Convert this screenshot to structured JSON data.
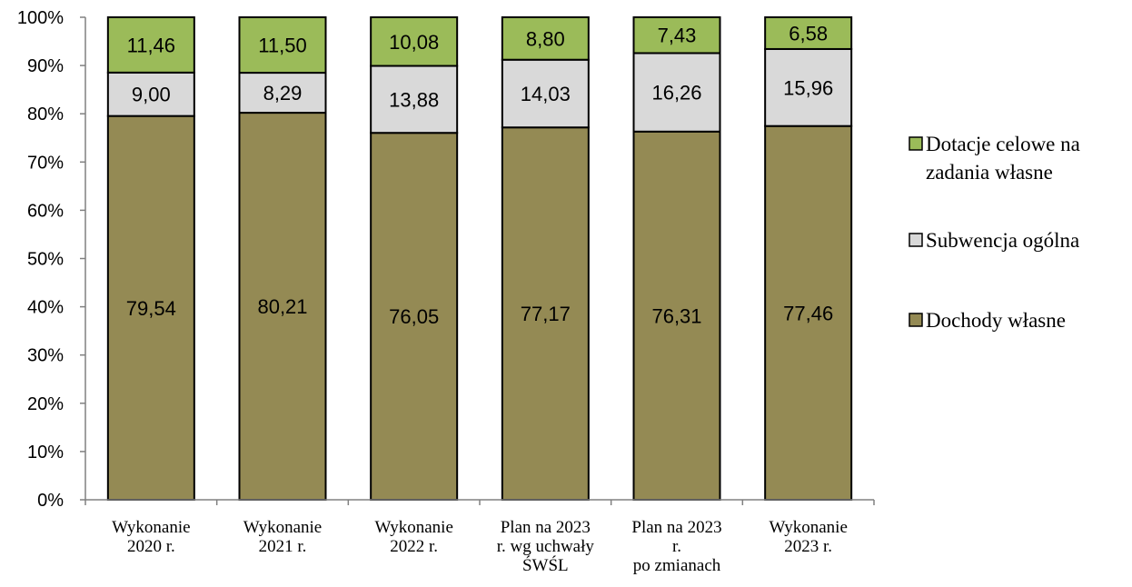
{
  "chart_data": {
    "type": "bar",
    "stacked": true,
    "normalized": true,
    "categories": [
      [
        "Wykonanie",
        "2020 r."
      ],
      [
        "Wykonanie",
        "2021 r."
      ],
      [
        "Wykonanie",
        "2022 r."
      ],
      [
        "Plan na 2023",
        "r. wg uchwały",
        "ŚWŚL"
      ],
      [
        "Plan na 2023",
        "r.",
        "po zmianach"
      ],
      [
        "Wykonanie",
        "2023 r."
      ]
    ],
    "series": [
      {
        "name": "Dochody własne",
        "color": "#948a54",
        "values": [
          79.54,
          80.21,
          76.05,
          77.17,
          76.31,
          77.46
        ],
        "labels": [
          "79,54",
          "80,21",
          "76,05",
          "77,17",
          "76,31",
          "77,46"
        ]
      },
      {
        "name": "Subwencja ogólna",
        "color": "#d9d9d9",
        "values": [
          9.0,
          8.29,
          13.88,
          14.03,
          16.26,
          15.96
        ],
        "labels": [
          "9,00",
          "8,29",
          "13,88",
          "14,03",
          "16,26",
          "15,96"
        ]
      },
      {
        "name": "Dotacje celowe na zadania własne",
        "color": "#9bbb59",
        "values": [
          11.46,
          11.5,
          10.08,
          8.8,
          7.43,
          6.58
        ],
        "labels": [
          "11,46",
          "11,50",
          "10,08",
          "8,80",
          "7,43",
          "6,58"
        ]
      }
    ],
    "legend_entries": [
      [
        "Dotacje celowe na",
        "zadania własne"
      ],
      [
        "Subwencja ogólna"
      ],
      [
        "Dochody własne"
      ]
    ],
    "legend_colors": [
      "#9bbb59",
      "#d9d9d9",
      "#948a54"
    ],
    "y_ticks": [
      "0%",
      "10%",
      "20%",
      "30%",
      "40%",
      "50%",
      "60%",
      "70%",
      "80%",
      "90%",
      "100%"
    ],
    "ylim": [
      0,
      100
    ],
    "grid": false,
    "legend_position": "right"
  }
}
